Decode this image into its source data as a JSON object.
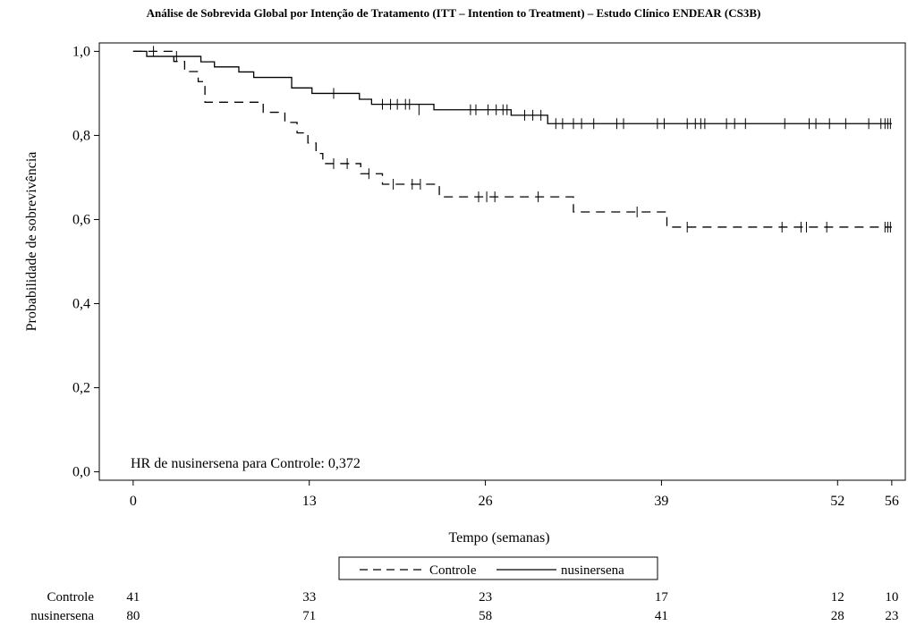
{
  "chart_data": {
    "type": "line",
    "title": "Análise de Sobrevida Global por Intenção de Tratamento (ITT – Intention to Treatment) – Estudo Clínico ENDEAR (CS3B)",
    "xlabel": "Tempo (semanas)",
    "ylabel": "Probabilidade de sobrevivência",
    "xlim": [
      -2.5,
      57
    ],
    "ylim": [
      -0.02,
      1.02
    ],
    "x_ticks": [
      0,
      13,
      26,
      39,
      52,
      56
    ],
    "y_ticks": [
      0.0,
      0.2,
      0.4,
      0.6,
      0.8,
      1.0
    ],
    "x_tick_labels": [
      "0",
      "13",
      "26",
      "39",
      "52",
      "56"
    ],
    "y_tick_labels": [
      "0,0",
      "0,2",
      "0,4",
      "0,6",
      "0,8",
      "1,0"
    ],
    "grid": false,
    "legend_position": "bottom-center",
    "annotation": "HR de nusinersena para Controle: 0,372",
    "series": [
      {
        "name": "Controle",
        "style": "dashed",
        "color": "#000000",
        "steps": [
          [
            0,
            1.0
          ],
          [
            3,
            0.976
          ],
          [
            3.8,
            0.952
          ],
          [
            4.8,
            0.928
          ],
          [
            5.3,
            0.879
          ],
          [
            9.6,
            0.855
          ],
          [
            11.2,
            0.831
          ],
          [
            12.1,
            0.806
          ],
          [
            12.9,
            0.782
          ],
          [
            13.5,
            0.757
          ],
          [
            14,
            0.733
          ],
          [
            16.8,
            0.709
          ],
          [
            18.4,
            0.684
          ],
          [
            22.6,
            0.654
          ],
          [
            32.5,
            0.618
          ],
          [
            39.4,
            0.582
          ],
          [
            56,
            0.582
          ]
        ],
        "censored": [
          [
            1.5,
            1.0
          ],
          [
            14.8,
            0.733
          ],
          [
            15.8,
            0.733
          ],
          [
            17.4,
            0.709
          ],
          [
            19.2,
            0.684
          ],
          [
            20.6,
            0.684
          ],
          [
            21.2,
            0.684
          ],
          [
            25.5,
            0.654
          ],
          [
            26.1,
            0.654
          ],
          [
            26.7,
            0.654
          ],
          [
            29.9,
            0.654
          ],
          [
            37.2,
            0.618
          ],
          [
            40.9,
            0.582
          ],
          [
            47.9,
            0.582
          ],
          [
            49.3,
            0.582
          ],
          [
            49.7,
            0.582
          ],
          [
            51.2,
            0.582
          ],
          [
            55.5,
            0.582
          ],
          [
            55.7,
            0.582
          ],
          [
            55.9,
            0.582
          ]
        ]
      },
      {
        "name": "nusinersena",
        "style": "solid",
        "color": "#000000",
        "steps": [
          [
            0,
            1.0
          ],
          [
            1,
            0.988
          ],
          [
            5,
            0.975
          ],
          [
            6,
            0.963
          ],
          [
            7.8,
            0.951
          ],
          [
            8.9,
            0.938
          ],
          [
            11.7,
            0.913
          ],
          [
            13.2,
            0.9
          ],
          [
            16.7,
            0.886
          ],
          [
            17.6,
            0.874
          ],
          [
            22.2,
            0.861
          ],
          [
            27.9,
            0.848
          ],
          [
            30.6,
            0.828
          ],
          [
            56,
            0.828
          ]
        ],
        "censored": [
          [
            3.2,
            0.988
          ],
          [
            14.8,
            0.9
          ],
          [
            18.4,
            0.874
          ],
          [
            19,
            0.874
          ],
          [
            19.5,
            0.874
          ],
          [
            20.1,
            0.874
          ],
          [
            20.4,
            0.874
          ],
          [
            21.1,
            0.861
          ],
          [
            24.9,
            0.861
          ],
          [
            25.3,
            0.861
          ],
          [
            26.2,
            0.861
          ],
          [
            26.8,
            0.861
          ],
          [
            27.3,
            0.861
          ],
          [
            27.6,
            0.861
          ],
          [
            28.9,
            0.848
          ],
          [
            29.5,
            0.848
          ],
          [
            30.1,
            0.848
          ],
          [
            31.2,
            0.828
          ],
          [
            31.7,
            0.828
          ],
          [
            32.5,
            0.828
          ],
          [
            33.1,
            0.828
          ],
          [
            34,
            0.828
          ],
          [
            35.7,
            0.828
          ],
          [
            36.2,
            0.828
          ],
          [
            38.7,
            0.828
          ],
          [
            39.2,
            0.828
          ],
          [
            40.9,
            0.828
          ],
          [
            41.5,
            0.828
          ],
          [
            41.9,
            0.828
          ],
          [
            42.2,
            0.828
          ],
          [
            43.8,
            0.828
          ],
          [
            44.4,
            0.828
          ],
          [
            45.2,
            0.828
          ],
          [
            48.1,
            0.828
          ],
          [
            49.9,
            0.828
          ],
          [
            50.4,
            0.828
          ],
          [
            51.4,
            0.828
          ],
          [
            52.6,
            0.828
          ],
          [
            54.3,
            0.828
          ],
          [
            55.2,
            0.828
          ],
          [
            55.5,
            0.828
          ],
          [
            55.7,
            0.828
          ],
          [
            55.9,
            0.828
          ]
        ]
      }
    ],
    "risk_table": {
      "times": [
        0,
        13,
        26,
        39,
        52,
        56
      ],
      "rows": [
        {
          "label": "Controle",
          "values": [
            41,
            33,
            23,
            17,
            12,
            10
          ]
        },
        {
          "label": "nusinersena",
          "values": [
            80,
            71,
            58,
            41,
            28,
            23
          ]
        }
      ]
    }
  }
}
